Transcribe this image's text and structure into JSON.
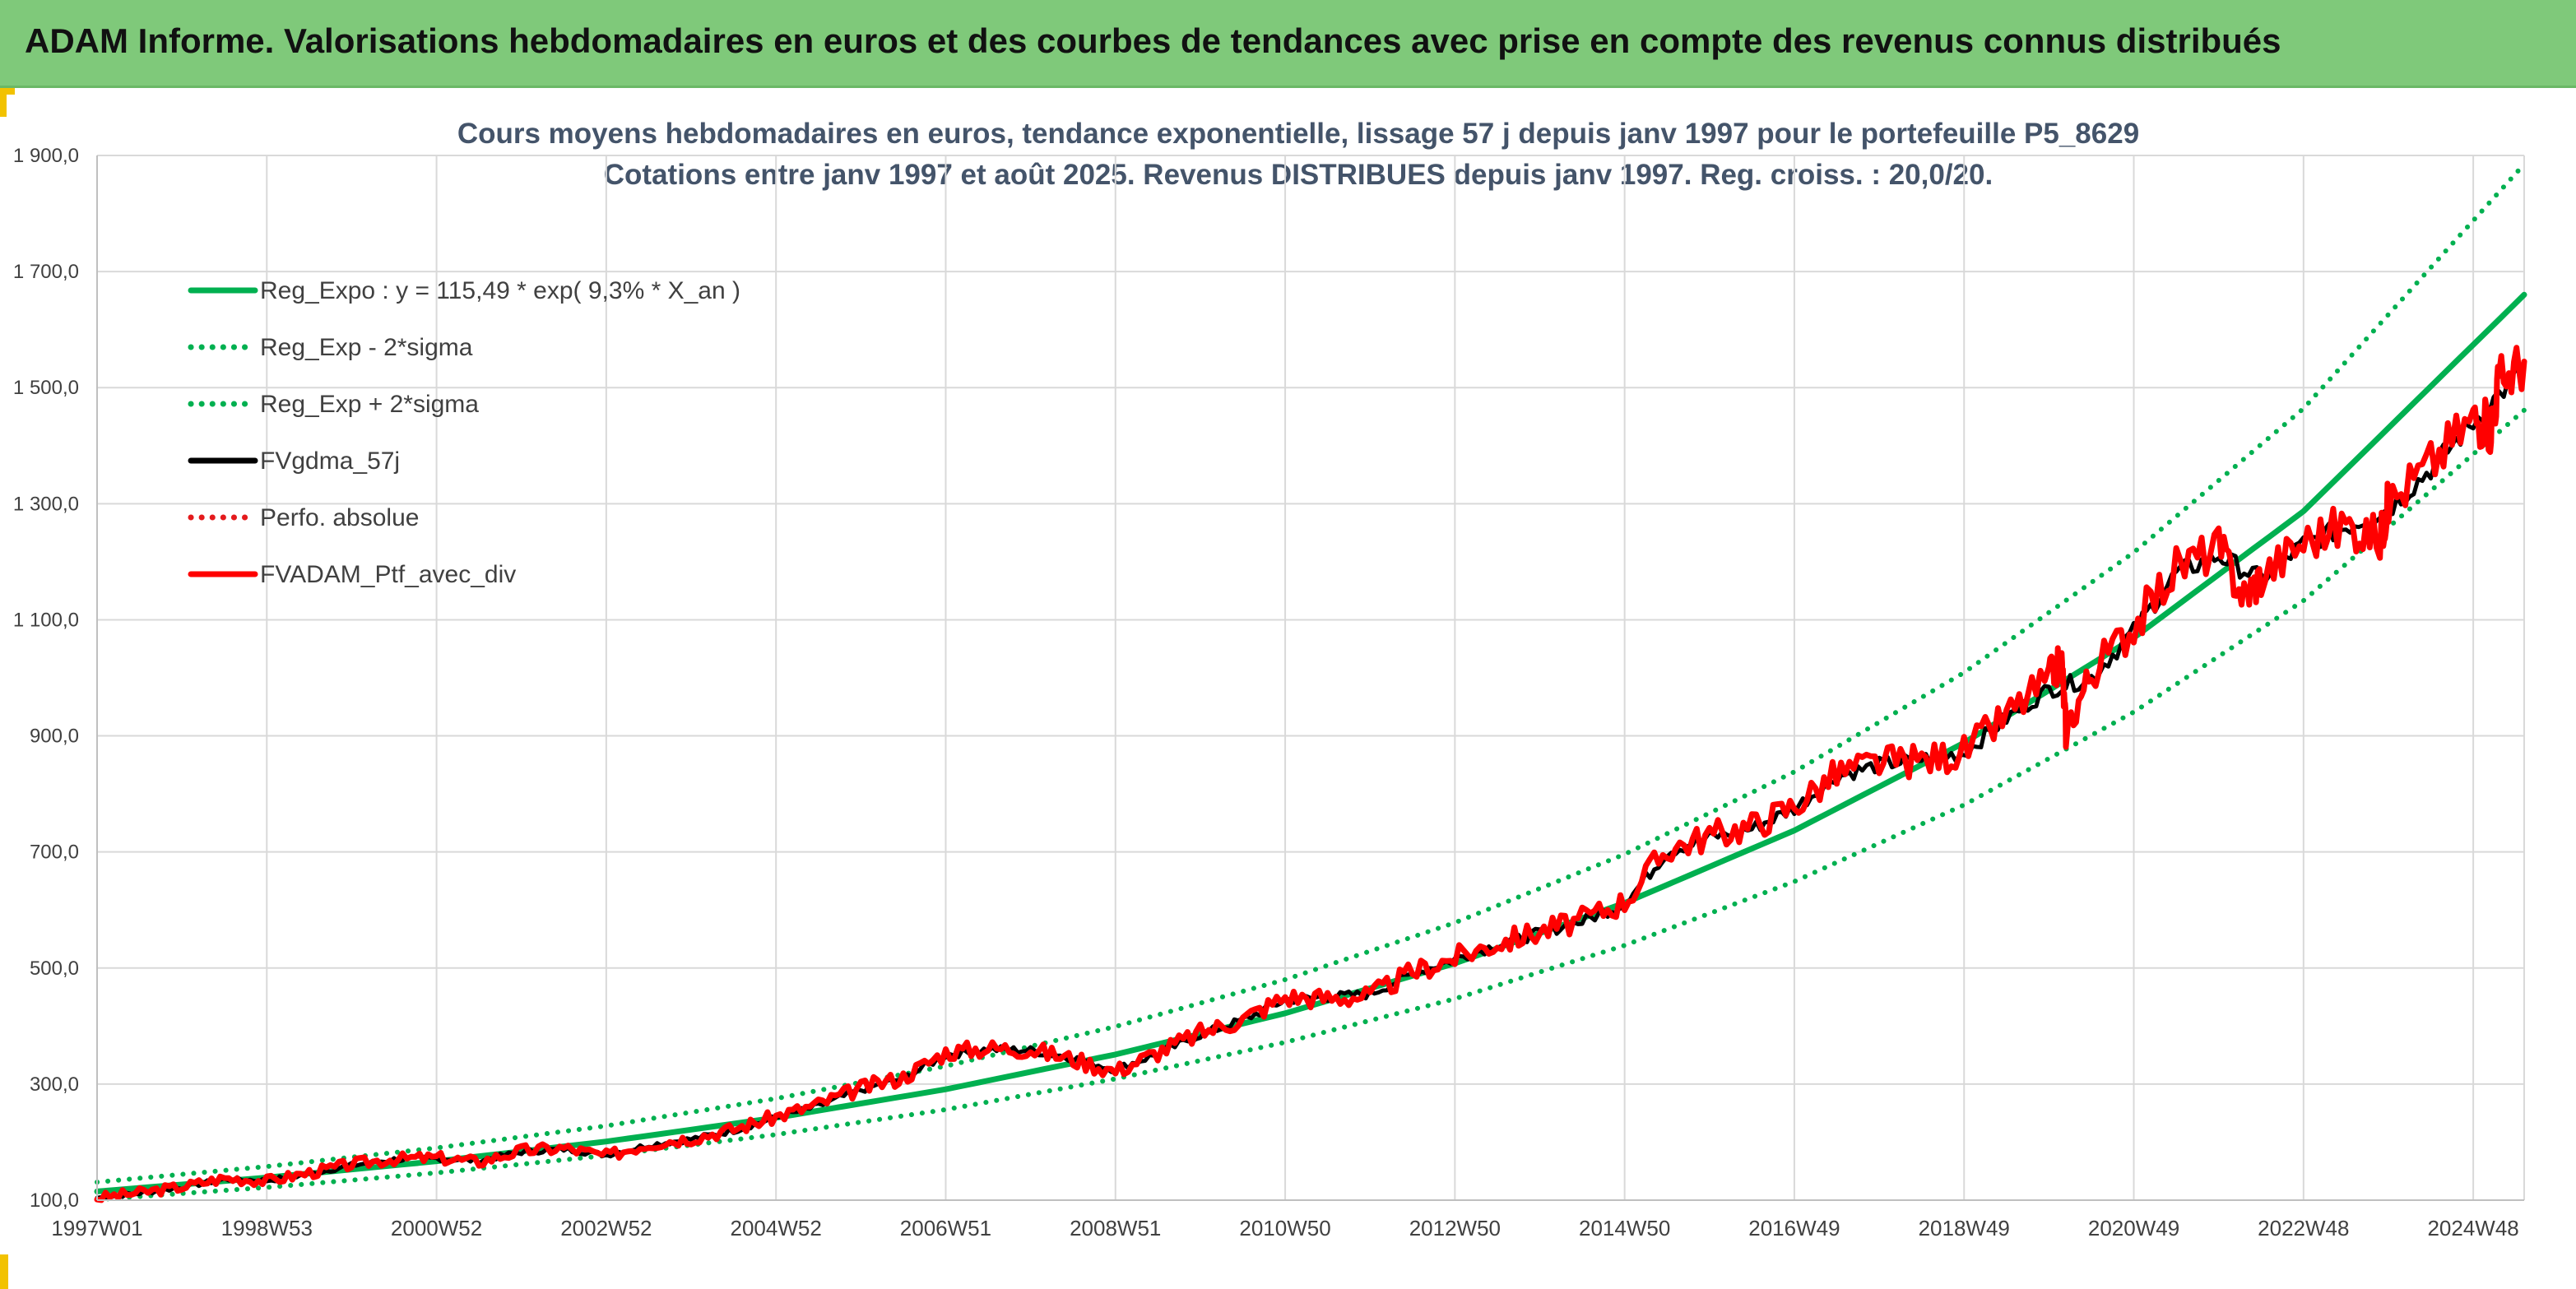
{
  "banner": {
    "title": "ADAM Informe. Valorisations hebdomadaires en euros et des courbes de tendances avec prise en compte des revenus connus distribués",
    "background": "#7fc97a",
    "accent": "#f2c200"
  },
  "chart_data": {
    "type": "line",
    "title": "Cours moyens hebdomadaires en euros, tendance exponentielle, lissage 57 j depuis janv 1997 pour le portefeuille P5_8629",
    "subtitle": "Cotations entre janv 1997 et août 2025. Revenus DISTRIBUES depuis janv 1997. Reg. croiss. : 20,0/20.",
    "xlabel": "",
    "ylabel": "",
    "ylim": [
      100,
      1900
    ],
    "yticks": [
      "1 900,0",
      "1 700,0",
      "1 500,0",
      "1 300,0",
      "1 100,0",
      "900,0",
      "700,0",
      "500,0",
      "300,0",
      "100,0"
    ],
    "xticks": [
      "1997W01",
      "1998W53",
      "2000W52",
      "2002W52",
      "2004W52",
      "2006W51",
      "2008W51",
      "2010W50",
      "2012W50",
      "2014W50",
      "2016W49",
      "2018W49",
      "2020W49",
      "2022W48",
      "2024W48"
    ],
    "xlim": [
      1997.0,
      2025.6
    ],
    "grid": true,
    "legend_position": "top-left",
    "series": [
      {
        "name": "Reg_Expo : y = 115,49 * exp( 9,3% *  X_an )",
        "color": "#00b050",
        "style": "solid",
        "x": [
          1997.0,
          1999.0,
          2001.0,
          2003.0,
          2005.0,
          2007.0,
          2009.0,
          2011.0,
          2013.0,
          2015.0,
          2017.0,
          2019.0,
          2021.0,
          2023.0,
          2025.6
        ],
        "values": [
          115,
          139,
          167,
          201,
          242,
          291,
          351,
          422,
          508,
          612,
          737,
          888,
          1069,
          1287,
          1660
        ]
      },
      {
        "name": "Reg_Exp - 2*sigma",
        "color": "#00b050",
        "style": "dotted",
        "x": [
          1997.0,
          1999.0,
          2001.0,
          2003.0,
          2005.0,
          2007.0,
          2009.0,
          2011.0,
          2013.0,
          2015.0,
          2017.0,
          2019.0,
          2021.0,
          2023.0,
          2025.6
        ],
        "values": [
          101,
          122,
          147,
          177,
          213,
          256,
          309,
          372,
          447,
          539,
          649,
          781,
          941,
          1133,
          1461
        ]
      },
      {
        "name": "Reg_Exp + 2*sigma",
        "color": "#00b050",
        "style": "dotted",
        "x": [
          1997.0,
          1999.0,
          2001.0,
          2003.0,
          2005.0,
          2007.0,
          2009.0,
          2011.0,
          2013.0,
          2015.0,
          2017.0,
          2019.0,
          2021.0,
          2023.0,
          2025.6
        ],
        "values": [
          131,
          158,
          190,
          228,
          275,
          331,
          399,
          480,
          578,
          696,
          838,
          1009,
          1216,
          1464,
          1885
        ]
      },
      {
        "name": "FVgdma_57j",
        "color": "#000000",
        "style": "solid",
        "x": [
          1997.0,
          1997.5,
          1998.0,
          1998.5,
          1999.0,
          1999.5,
          2000.0,
          2000.5,
          2001.0,
          2001.5,
          2002.0,
          2002.5,
          2003.0,
          2003.5,
          2004.0,
          2004.5,
          2005.0,
          2005.5,
          2006.0,
          2006.5,
          2007.0,
          2007.5,
          2008.0,
          2008.5,
          2009.0,
          2009.5,
          2010.0,
          2010.5,
          2011.0,
          2011.5,
          2012.0,
          2012.5,
          2013.0,
          2013.5,
          2014.0,
          2014.5,
          2015.0,
          2015.5,
          2016.0,
          2016.5,
          2017.0,
          2017.5,
          2018.0,
          2018.5,
          2019.0,
          2019.5,
          2020.0,
          2020.5,
          2021.0,
          2021.5,
          2022.0,
          2022.5,
          2023.0,
          2023.5,
          2024.0,
          2024.5,
          2025.0,
          2025.6
        ],
        "values": [
          104,
          112,
          122,
          136,
          134,
          145,
          160,
          170,
          172,
          168,
          183,
          188,
          178,
          195,
          205,
          220,
          242,
          262,
          290,
          310,
          350,
          360,
          358,
          345,
          325,
          352,
          385,
          410,
          445,
          450,
          455,
          490,
          515,
          540,
          560,
          580,
          610,
          700,
          725,
          740,
          775,
          830,
          850,
          860,
          870,
          930,
          980,
          1000,
          1080,
          1180,
          1210,
          1170,
          1230,
          1260,
          1290,
          1360,
          1440,
          1535
        ]
      },
      {
        "name": "Perfo. absolue",
        "color": "#e41a1c",
        "style": "dotted",
        "x": [
          1997.0,
          1997.5,
          1998.0,
          1998.5,
          1999.0,
          1999.5,
          2000.0,
          2000.5,
          2001.0,
          2001.5,
          2002.0,
          2002.5,
          2003.0,
          2003.5,
          2004.0,
          2004.5,
          2005.0,
          2005.5,
          2006.0,
          2006.5,
          2007.0,
          2007.5,
          2008.0,
          2008.5,
          2009.0,
          2009.5,
          2010.0,
          2010.5,
          2011.0,
          2011.5,
          2012.0,
          2012.5,
          2013.0,
          2013.5,
          2014.0,
          2014.5,
          2015.0,
          2015.5,
          2016.0,
          2016.5,
          2017.0,
          2017.5,
          2018.0,
          2018.5,
          2019.0,
          2019.5,
          2020.0,
          2020.5,
          2021.0,
          2021.5,
          2022.0,
          2022.5,
          2023.0,
          2023.5,
          2024.0,
          2024.5,
          2025.0,
          2025.6
        ],
        "values": [
          104,
          112,
          122,
          136,
          134,
          145,
          160,
          170,
          172,
          168,
          183,
          188,
          178,
          195,
          205,
          220,
          242,
          262,
          290,
          310,
          350,
          360,
          358,
          345,
          325,
          352,
          385,
          410,
          445,
          450,
          455,
          490,
          515,
          540,
          560,
          580,
          610,
          700,
          725,
          740,
          775,
          830,
          850,
          860,
          870,
          930,
          980,
          1000,
          1080,
          1180,
          1210,
          1170,
          1230,
          1260,
          1290,
          1360,
          1440,
          1535
        ]
      },
      {
        "name": "FVADAM_Ptf_avec_div",
        "color": "#ff0000",
        "style": "solid",
        "x": [
          1997.0,
          1997.5,
          1998.0,
          1998.5,
          1999.0,
          1999.5,
          2000.0,
          2000.5,
          2001.0,
          2001.5,
          2002.0,
          2002.5,
          2003.0,
          2003.5,
          2004.0,
          2004.5,
          2005.0,
          2005.5,
          2006.0,
          2006.5,
          2007.0,
          2007.5,
          2008.0,
          2008.5,
          2009.0,
          2009.5,
          2010.0,
          2010.5,
          2011.0,
          2011.5,
          2012.0,
          2012.5,
          2013.0,
          2013.5,
          2014.0,
          2014.5,
          2015.0,
          2015.5,
          2016.0,
          2016.5,
          2017.0,
          2017.5,
          2018.0,
          2018.5,
          2019.0,
          2019.5,
          2020.0,
          2020.15,
          2020.2,
          2020.5,
          2021.0,
          2021.5,
          2022.0,
          2022.3,
          2022.5,
          2023.0,
          2023.5,
          2023.9,
          2024.0,
          2024.5,
          2025.0,
          2025.2,
          2025.3,
          2025.6
        ],
        "values": [
          104,
          113,
          123,
          138,
          133,
          147,
          162,
          171,
          173,
          166,
          185,
          190,
          176,
          197,
          207,
          222,
          244,
          265,
          293,
          312,
          355,
          362,
          360,
          343,
          322,
          355,
          388,
          412,
          450,
          448,
          452,
          493,
          518,
          543,
          563,
          583,
          615,
          705,
          728,
          745,
          780,
          835,
          855,
          858,
          872,
          935,
          1000,
          1030,
          910,
          1010,
          1090,
          1190,
          1225,
          1140,
          1175,
          1235,
          1265,
          1240,
          1300,
          1370,
          1450,
          1430,
          1510,
          1545
        ]
      }
    ]
  }
}
